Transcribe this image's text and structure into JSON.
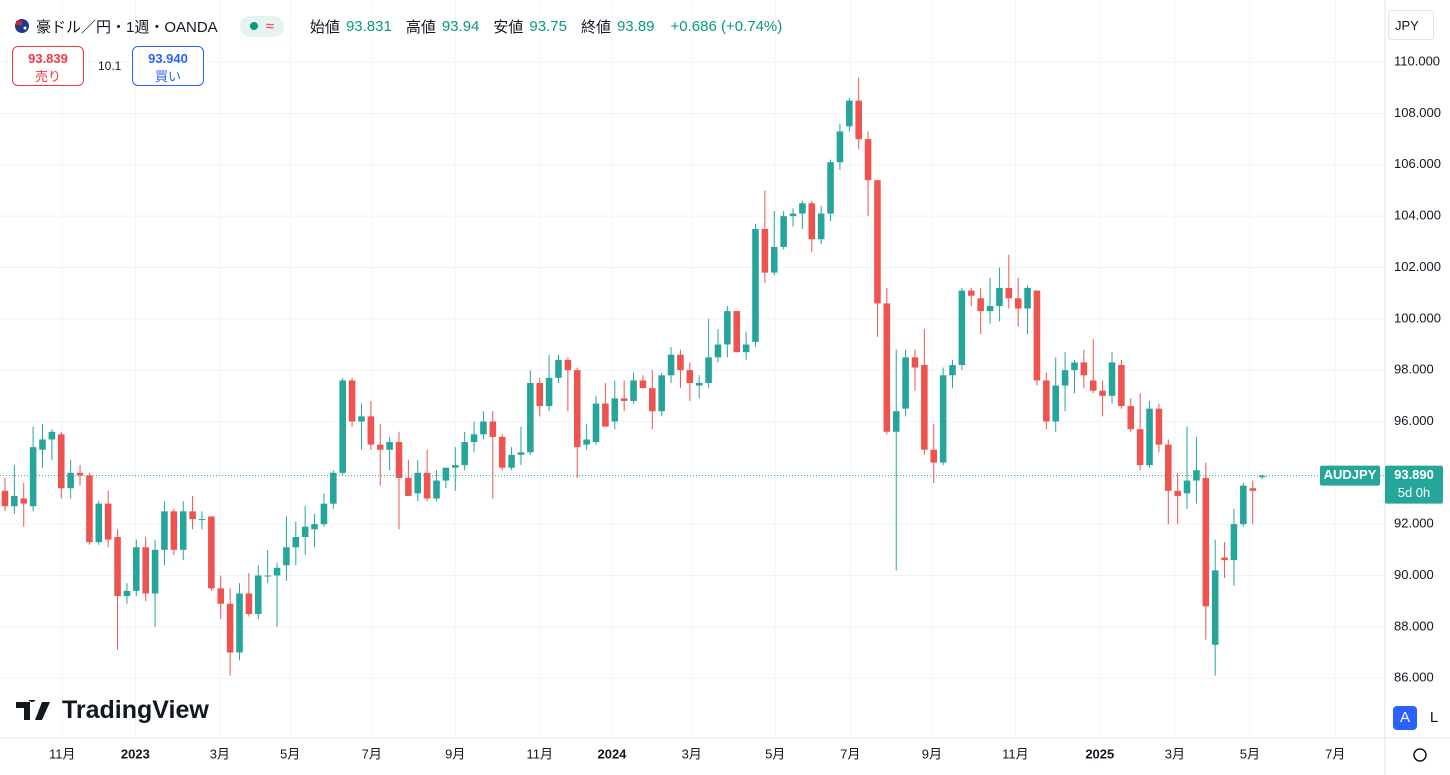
{
  "chart_data": {
    "type": "candlestick",
    "title": "豪ドル／円・1週・OANDA",
    "open_label": "始値",
    "high_label": "高値",
    "low_label": "安値",
    "close_label": "終値",
    "change": "+0.686 (+0.74%)",
    "sell": {
      "price": "93.839",
      "label": "売り"
    },
    "spread": "10.1",
    "buy": {
      "price": "93.940",
      "label": "買い"
    },
    "currency": "JPY",
    "symbol": "AUDJPY",
    "last_price": {
      "value": 93.89,
      "label": "93.890"
    },
    "countdown": "5d 0h",
    "logo": "TradingView",
    "buttons": [
      "A",
      "L"
    ],
    "up_color": "#26a69a",
    "down_color": "#ef5350",
    "grid": true,
    "xlim": [
      -0.53,
      147.1
    ],
    "ylim": [
      83.67,
      112.42
    ],
    "yticks": [
      {
        "value": 86,
        "label": "86.000"
      },
      {
        "value": 88,
        "label": "88.000"
      },
      {
        "value": 90,
        "label": "90.000"
      },
      {
        "value": 92,
        "label": "92.000"
      },
      {
        "value": 94,
        "label": "94.000"
      },
      {
        "value": 96,
        "label": "96.000"
      },
      {
        "value": 98,
        "label": "98.000"
      },
      {
        "value": 100,
        "label": "100.000"
      },
      {
        "value": 102,
        "label": "102.000"
      },
      {
        "value": 104,
        "label": "104.000"
      },
      {
        "value": 106,
        "label": "106.000"
      },
      {
        "value": 108,
        "label": "108.000"
      },
      {
        "value": 110,
        "label": "110.000"
      }
    ],
    "xticks": [
      {
        "value": 6.1,
        "label": "11月"
      },
      {
        "value": 13.9,
        "label": "2023"
      },
      {
        "value": 22.9,
        "label": "3月"
      },
      {
        "value": 30.4,
        "label": "5月"
      },
      {
        "value": 39.1,
        "label": "7月"
      },
      {
        "value": 48,
        "label": "9月"
      },
      {
        "value": 57,
        "label": "11月"
      },
      {
        "value": 64.7,
        "label": "2024"
      },
      {
        "value": 73.2,
        "label": "3月"
      },
      {
        "value": 82.1,
        "label": "5月"
      },
      {
        "value": 90.1,
        "label": "7月"
      },
      {
        "value": 98.8,
        "label": "9月"
      },
      {
        "value": 107.7,
        "label": "11月"
      },
      {
        "value": 116.7,
        "label": "2025"
      },
      {
        "value": 124.7,
        "label": "3月"
      },
      {
        "value": 132.7,
        "label": "5月"
      },
      {
        "value": 141.8,
        "label": "7月"
      }
    ],
    "candles": [
      [
        93.3,
        93.8,
        92.5,
        92.7
      ],
      [
        92.7,
        94.3,
        92.4,
        93.1
      ],
      [
        93.0,
        93.6,
        91.9,
        92.8
      ],
      [
        92.7,
        95.8,
        92.5,
        95.0
      ],
      [
        94.9,
        95.9,
        94.2,
        95.3
      ],
      [
        95.3,
        95.7,
        94.5,
        95.6
      ],
      [
        95.5,
        95.6,
        93.0,
        93.4
      ],
      [
        93.4,
        94.5,
        93.0,
        94.0
      ],
      [
        94.0,
        94.3,
        93.5,
        93.9
      ],
      [
        93.9,
        94.0,
        91.2,
        91.3
      ],
      [
        91.3,
        92.9,
        91.2,
        92.8
      ],
      [
        92.8,
        93.3,
        91.1,
        91.4
      ],
      [
        91.5,
        91.8,
        87.1,
        89.2
      ],
      [
        89.2,
        89.7,
        88.9,
        89.4
      ],
      [
        89.4,
        91.4,
        89.2,
        91.1
      ],
      [
        91.1,
        91.5,
        89.0,
        89.3
      ],
      [
        89.3,
        91.4,
        88.0,
        91.0
      ],
      [
        91.0,
        92.9,
        90.4,
        92.5
      ],
      [
        92.5,
        92.6,
        90.8,
        91.0
      ],
      [
        91.0,
        92.9,
        90.6,
        92.5
      ],
      [
        92.5,
        93.1,
        91.8,
        92.2
      ],
      [
        92.2,
        92.5,
        91.8,
        92.2
      ],
      [
        92.3,
        92.3,
        89.4,
        89.5
      ],
      [
        89.5,
        90.0,
        88.3,
        88.9
      ],
      [
        88.9,
        89.5,
        86.1,
        87.0
      ],
      [
        87.0,
        89.7,
        86.7,
        89.3
      ],
      [
        89.3,
        90.1,
        88.4,
        88.5
      ],
      [
        88.5,
        90.4,
        88.3,
        90.0
      ],
      [
        90.0,
        91.0,
        89.7,
        90.0
      ],
      [
        90.0,
        90.5,
        88.0,
        90.3
      ],
      [
        90.4,
        92.3,
        89.8,
        91.1
      ],
      [
        91.1,
        92.1,
        90.4,
        91.5
      ],
      [
        91.5,
        92.7,
        90.8,
        91.9
      ],
      [
        91.8,
        92.4,
        91.1,
        92.0
      ],
      [
        92.0,
        93.2,
        91.9,
        92.8
      ],
      [
        92.8,
        94.1,
        92.6,
        94.0
      ],
      [
        94.0,
        97.7,
        93.9,
        97.6
      ],
      [
        97.6,
        97.7,
        95.8,
        96.0
      ],
      [
        96.0,
        96.7,
        94.9,
        96.2
      ],
      [
        96.2,
        96.8,
        94.9,
        95.1
      ],
      [
        95.1,
        95.9,
        93.5,
        94.9
      ],
      [
        94.9,
        95.4,
        94.1,
        95.2
      ],
      [
        95.2,
        95.6,
        91.8,
        93.8
      ],
      [
        93.8,
        94.5,
        93.1,
        93.1
      ],
      [
        93.2,
        94.5,
        92.9,
        94.0
      ],
      [
        94.0,
        94.9,
        92.9,
        93.0
      ],
      [
        93.0,
        94.1,
        92.9,
        93.7
      ],
      [
        93.7,
        94.2,
        93.4,
        94.2
      ],
      [
        94.2,
        95.0,
        93.3,
        94.3
      ],
      [
        94.3,
        95.6,
        94.1,
        95.2
      ],
      [
        95.2,
        96.0,
        94.8,
        95.5
      ],
      [
        95.5,
        96.4,
        95.3,
        96.0
      ],
      [
        96.0,
        96.4,
        93.0,
        95.4
      ],
      [
        95.4,
        95.5,
        94.1,
        94.2
      ],
      [
        94.2,
        95.0,
        94.1,
        94.7
      ],
      [
        94.7,
        95.8,
        94.3,
        94.8
      ],
      [
        94.8,
        98.0,
        94.7,
        97.5
      ],
      [
        97.5,
        97.7,
        96.2,
        96.6
      ],
      [
        96.6,
        98.6,
        96.4,
        97.7
      ],
      [
        97.7,
        98.6,
        97.5,
        98.4
      ],
      [
        98.4,
        98.5,
        96.4,
        98.0
      ],
      [
        98.0,
        98.1,
        93.8,
        95.0
      ],
      [
        95.1,
        95.9,
        94.9,
        95.3
      ],
      [
        95.2,
        97.0,
        95.1,
        96.7
      ],
      [
        96.7,
        97.5,
        95.8,
        95.8
      ],
      [
        96.0,
        97.6,
        95.7,
        96.9
      ],
      [
        96.9,
        97.6,
        96.4,
        96.8
      ],
      [
        96.8,
        97.9,
        96.7,
        97.6
      ],
      [
        97.6,
        97.8,
        97.3,
        97.3
      ],
      [
        97.3,
        98.0,
        95.7,
        96.4
      ],
      [
        96.4,
        97.9,
        96.2,
        97.8
      ],
      [
        97.8,
        98.9,
        97.5,
        98.6
      ],
      [
        98.6,
        98.8,
        97.3,
        98.0
      ],
      [
        98.0,
        98.3,
        96.8,
        97.5
      ],
      [
        97.4,
        97.8,
        96.9,
        97.5
      ],
      [
        97.5,
        100.0,
        97.3,
        98.5
      ],
      [
        98.5,
        99.6,
        98.3,
        99.0
      ],
      [
        99.0,
        100.5,
        98.5,
        100.3
      ],
      [
        100.3,
        100.3,
        98.7,
        98.7
      ],
      [
        98.7,
        99.5,
        98.4,
        99.0
      ],
      [
        99.1,
        103.7,
        98.9,
        103.5
      ],
      [
        103.5,
        105.0,
        101.4,
        101.8
      ],
      [
        101.8,
        104.2,
        101.7,
        102.8
      ],
      [
        102.8,
        104.2,
        102.7,
        104.0
      ],
      [
        104.0,
        104.3,
        103.6,
        104.1
      ],
      [
        104.1,
        104.6,
        103.5,
        104.5
      ],
      [
        104.5,
        104.6,
        102.6,
        103.1
      ],
      [
        103.1,
        104.4,
        102.9,
        104.1
      ],
      [
        104.1,
        106.2,
        103.8,
        106.1
      ],
      [
        106.1,
        107.6,
        105.8,
        107.3
      ],
      [
        107.5,
        108.6,
        107.3,
        108.5
      ],
      [
        108.5,
        109.4,
        106.6,
        107.0
      ],
      [
        107.0,
        107.3,
        104.0,
        105.4
      ],
      [
        105.4,
        105.4,
        99.3,
        100.6
      ],
      [
        100.6,
        101.2,
        95.5,
        95.6
      ],
      [
        95.6,
        98.8,
        90.2,
        96.4
      ],
      [
        96.5,
        98.8,
        96.2,
        98.5
      ],
      [
        98.5,
        98.8,
        97.2,
        98.1
      ],
      [
        98.2,
        99.6,
        94.7,
        94.9
      ],
      [
        94.9,
        95.9,
        93.6,
        94.4
      ],
      [
        94.4,
        98.1,
        94.3,
        97.8
      ],
      [
        97.8,
        98.4,
        97.3,
        98.2
      ],
      [
        98.2,
        101.2,
        98.0,
        101.1
      ],
      [
        101.1,
        101.2,
        100.5,
        100.9
      ],
      [
        100.8,
        101.2,
        99.4,
        100.3
      ],
      [
        100.3,
        101.6,
        99.8,
        100.5
      ],
      [
        100.5,
        102.0,
        99.9,
        101.2
      ],
      [
        101.2,
        102.5,
        100.4,
        100.8
      ],
      [
        100.8,
        101.6,
        99.7,
        100.4
      ],
      [
        100.4,
        101.3,
        99.4,
        101.2
      ],
      [
        101.1,
        101.1,
        97.4,
        97.6
      ],
      [
        97.6,
        97.9,
        95.7,
        96.0
      ],
      [
        96.0,
        98.5,
        95.6,
        97.4
      ],
      [
        97.4,
        98.7,
        96.4,
        98.0
      ],
      [
        98.0,
        98.4,
        97.1,
        98.3
      ],
      [
        98.3,
        98.8,
        97.3,
        97.8
      ],
      [
        97.6,
        99.2,
        97.1,
        97.2
      ],
      [
        97.2,
        97.6,
        96.2,
        97.0
      ],
      [
        97.0,
        98.7,
        96.7,
        98.3
      ],
      [
        98.2,
        98.4,
        96.5,
        96.6
      ],
      [
        96.6,
        96.9,
        95.6,
        95.7
      ],
      [
        95.7,
        97.1,
        94.1,
        94.3
      ],
      [
        94.3,
        96.8,
        94.2,
        96.5
      ],
      [
        96.5,
        96.7,
        94.8,
        95.1
      ],
      [
        95.1,
        95.3,
        92.0,
        93.3
      ],
      [
        93.3,
        94.0,
        92.0,
        93.1
      ],
      [
        93.2,
        95.8,
        92.6,
        93.7
      ],
      [
        93.7,
        95.4,
        92.8,
        94.1
      ],
      [
        93.8,
        94.4,
        87.5,
        88.8
      ],
      [
        87.3,
        91.4,
        86.1,
        90.2
      ],
      [
        90.7,
        91.3,
        89.9,
        90.6
      ],
      [
        90.6,
        92.6,
        89.6,
        92.0
      ],
      [
        92.0,
        93.6,
        91.9,
        93.5
      ],
      [
        93.4,
        93.7,
        92.0,
        93.3
      ],
      [
        93.831,
        93.94,
        93.75,
        93.89
      ]
    ]
  }
}
